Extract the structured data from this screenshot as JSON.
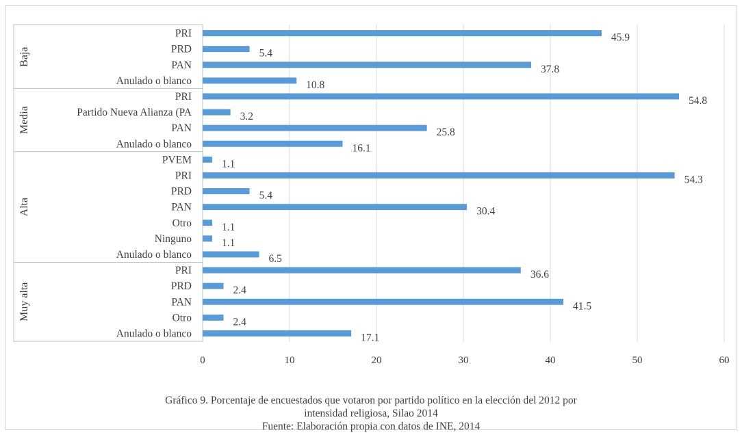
{
  "chart_data": {
    "type": "bar",
    "orientation": "horizontal",
    "xlim": [
      0,
      60
    ],
    "x_ticks": [
      "0",
      "10",
      "20",
      "30",
      "40",
      "50",
      "60"
    ],
    "grid": true,
    "bar_color": "#5b9bd5",
    "groups": [
      {
        "label": "Baja",
        "items": [
          {
            "category": "PRI",
            "value": 45.9,
            "label": "45.9"
          },
          {
            "category": "PRD",
            "value": 5.4,
            "label": "5.4"
          },
          {
            "category": "PAN",
            "value": 37.8,
            "label": "37.8"
          },
          {
            "category": "Anulado o blanco",
            "value": 10.8,
            "label": "10.8"
          }
        ]
      },
      {
        "label": "Media",
        "items": [
          {
            "category": "PRI",
            "value": 54.8,
            "label": "54.8"
          },
          {
            "category": "Partido Nueva Alianza (PA",
            "value": 3.2,
            "label": "3.2"
          },
          {
            "category": "PAN",
            "value": 25.8,
            "label": "25.8"
          },
          {
            "category": "Anulado o blanco",
            "value": 16.1,
            "label": "16.1"
          }
        ]
      },
      {
        "label": "Alta",
        "items": [
          {
            "category": "PVEM",
            "value": 1.1,
            "label": "1.1"
          },
          {
            "category": "PRI",
            "value": 54.3,
            "label": "54.3"
          },
          {
            "category": "PRD",
            "value": 5.4,
            "label": "5.4"
          },
          {
            "category": "PAN",
            "value": 30.4,
            "label": "30.4"
          },
          {
            "category": "Otro",
            "value": 1.1,
            "label": "1.1"
          },
          {
            "category": "Ninguno",
            "value": 1.1,
            "label": "1.1"
          },
          {
            "category": "Anulado o blanco",
            "value": 6.5,
            "label": "6.5"
          }
        ]
      },
      {
        "label": "Muy alta",
        "items": [
          {
            "category": "PRI",
            "value": 36.6,
            "label": "36.6"
          },
          {
            "category": "PRD",
            "value": 2.4,
            "label": "2.4"
          },
          {
            "category": "PAN",
            "value": 41.5,
            "label": "41.5"
          },
          {
            "category": "Otro",
            "value": 2.4,
            "label": "2.4"
          },
          {
            "category": "Anulado o blanco",
            "value": 17.1,
            "label": "17.1"
          }
        ]
      }
    ]
  },
  "caption": {
    "line1": "Gráfico 9. Porcentaje de encuestados que votaron  por partido político en la elección del 2012 por",
    "line2": "intensidad religiosa, Silao 2014",
    "line3": "Fuente: Elaboración propia con datos de INE, 2014"
  }
}
